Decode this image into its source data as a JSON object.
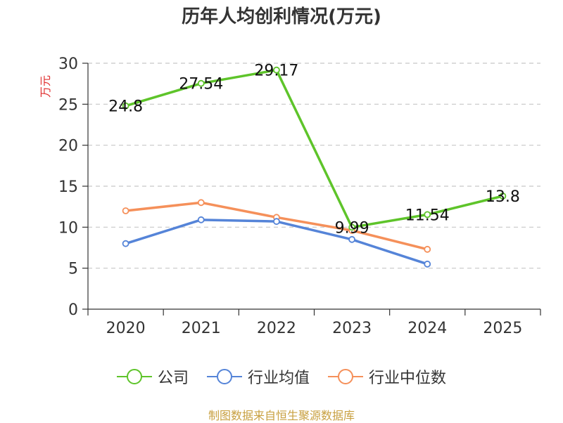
{
  "chart_data": {
    "type": "line",
    "title": "历年人均创利情况(万元)",
    "ylabel": "万元",
    "xlabel": "",
    "categories": [
      "2020",
      "2021",
      "2022",
      "2023",
      "2024",
      "2025"
    ],
    "ylim": [
      0,
      30
    ],
    "yticks": [
      "0",
      "5",
      "10",
      "15",
      "20",
      "25",
      "30"
    ],
    "grid": true,
    "legend_position": "bottom",
    "series": [
      {
        "name": "公司",
        "color": "#5ec42a",
        "values": [
          24.8,
          27.54,
          29.17,
          9.99,
          11.54,
          13.8
        ],
        "labels": [
          "24.8",
          "27.54",
          "29.17",
          "9.99",
          "11.54",
          "13.8"
        ]
      },
      {
        "name": "行业均值",
        "color": "#5584d8",
        "values": [
          8.0,
          10.9,
          10.7,
          8.5,
          5.5,
          null
        ]
      },
      {
        "name": "行业中位数",
        "color": "#f5905a",
        "values": [
          12.0,
          13.0,
          11.2,
          9.6,
          7.3,
          null
        ]
      }
    ]
  },
  "source_text": "制图数据来自恒生聚源数据库"
}
